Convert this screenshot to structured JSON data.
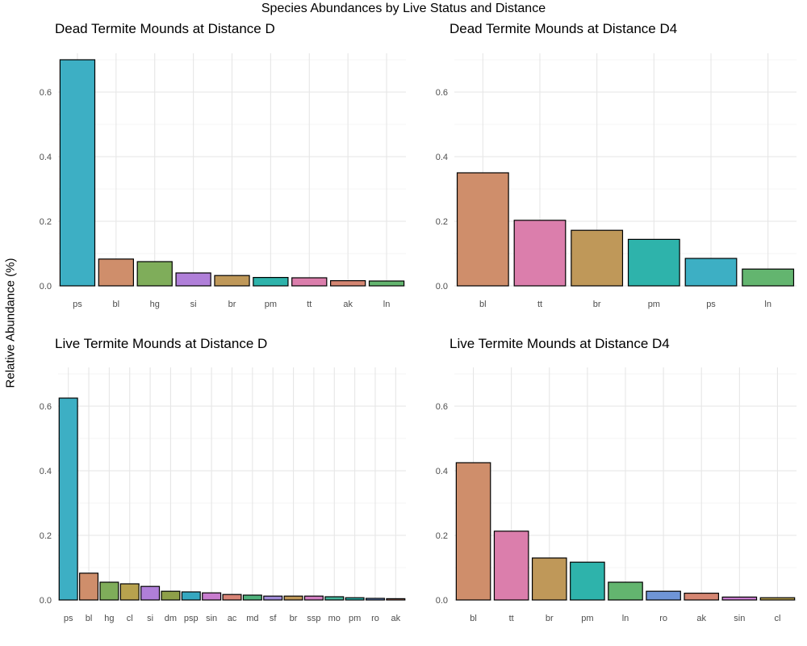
{
  "figure": {
    "title": "Species Abundances by Live Status and Distance",
    "ylabel": "Relative Abundance (%)"
  },
  "colors": {
    "ps": "#3DAFC4",
    "bl": "#CF8E6B",
    "hg": "#7FAD5A",
    "si": "#B07FD9",
    "br": "#BF9859",
    "pm": "#2EB3AB",
    "tt": "#DB7EAC",
    "ak": "#D58672",
    "ln": "#63B56F",
    "cl": "#B8A24E",
    "dm": "#8E9F49",
    "psp": "#35A7C0",
    "sin": "#C87CCE",
    "ac": "#D88476",
    "md": "#4FB27C",
    "sf": "#A08BD6",
    "ssp": "#D27FC2",
    "mo": "#45B59A",
    "ro": "#6F95D6"
  },
  "chart_data": [
    {
      "type": "bar",
      "title": "Dead Termite Mounds at Distance D",
      "categories": [
        "ps",
        "bl",
        "hg",
        "si",
        "br",
        "pm",
        "tt",
        "ak",
        "ln"
      ],
      "values": [
        0.7,
        0.083,
        0.075,
        0.04,
        0.032,
        0.026,
        0.025,
        0.016,
        0.015
      ],
      "ylim": [
        0,
        0.72
      ],
      "yticks": [
        "0.0",
        "0.2",
        "0.4",
        "0.6"
      ]
    },
    {
      "type": "bar",
      "title": "Dead Termite Mounds at Distance D4",
      "categories": [
        "bl",
        "tt",
        "br",
        "pm",
        "ps",
        "ln"
      ],
      "values": [
        0.35,
        0.203,
        0.172,
        0.144,
        0.085,
        0.052
      ],
      "ylim": [
        0,
        0.72
      ],
      "yticks": [
        "0.0",
        "0.2",
        "0.4",
        "0.6"
      ]
    },
    {
      "type": "bar",
      "title": "Live Termite Mounds at Distance D",
      "categories": [
        "ps",
        "bl",
        "hg",
        "cl",
        "si",
        "dm",
        "psp",
        "sin",
        "ac",
        "md",
        "sf",
        "br",
        "ssp",
        "mo",
        "pm",
        "ro",
        "ak"
      ],
      "values": [
        0.625,
        0.083,
        0.055,
        0.05,
        0.042,
        0.027,
        0.025,
        0.022,
        0.017,
        0.015,
        0.012,
        0.012,
        0.012,
        0.01,
        0.007,
        0.005,
        0.004
      ],
      "ylim": [
        0,
        0.72
      ],
      "yticks": [
        "0.0",
        "0.2",
        "0.4",
        "0.6"
      ]
    },
    {
      "type": "bar",
      "title": "Live Termite Mounds at Distance D4",
      "categories": [
        "bl",
        "tt",
        "br",
        "pm",
        "ln",
        "ro",
        "ak",
        "sin",
        "cl"
      ],
      "values": [
        0.425,
        0.213,
        0.13,
        0.117,
        0.055,
        0.027,
        0.021,
        0.009,
        0.007
      ],
      "ylim": [
        0,
        0.72
      ],
      "yticks": [
        "0.0",
        "0.2",
        "0.4",
        "0.6"
      ]
    }
  ]
}
